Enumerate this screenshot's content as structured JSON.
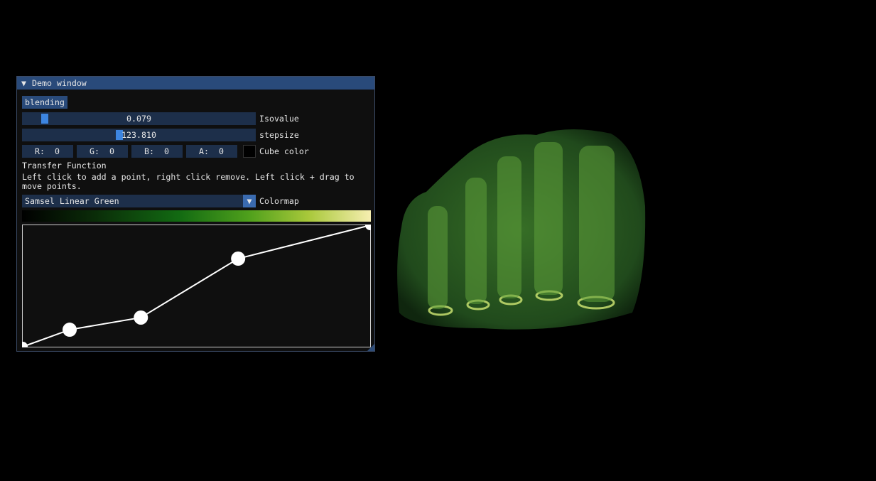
{
  "window": {
    "title": "Demo window",
    "blending_button": "blending",
    "isovalue": {
      "value": "0.079",
      "label": "Isovalue"
    },
    "stepsize": {
      "value": "123.810",
      "label": "stepsize"
    },
    "cube_color": {
      "label": "Cube color",
      "fields": [
        {
          "label": "R:",
          "value": "0"
        },
        {
          "label": "G:",
          "value": "0"
        },
        {
          "label": "B:",
          "value": "0"
        },
        {
          "label": "A:",
          "value": "0"
        }
      ]
    },
    "transfer_function": {
      "heading": "Transfer Function",
      "instructions": "Left click to add a point, right click remove. Left click + drag to move points.",
      "colormap": {
        "selected": "Samsel Linear Green",
        "label": "Colormap"
      },
      "points": [
        {
          "x": 0,
          "y": 0
        },
        {
          "x": 0.135,
          "y": 0.14
        },
        {
          "x": 0.34,
          "y": 0.24
        },
        {
          "x": 0.62,
          "y": 0.725
        },
        {
          "x": 1,
          "y": 1
        }
      ]
    }
  }
}
